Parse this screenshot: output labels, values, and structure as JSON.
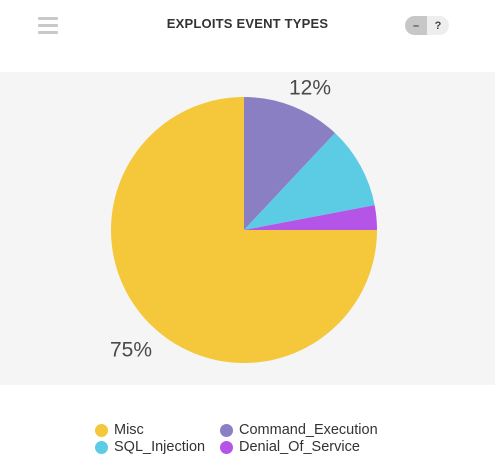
{
  "header": {
    "title": "EXPLOITS EVENT TYPES",
    "menu_icon": "hamburger-menu-icon",
    "minimize_label": "–",
    "help_label": "?"
  },
  "colors": {
    "plot_background": "#f5f5f5",
    "minimize_bg": "#c7c7c7",
    "help_bg": "#eeeeee"
  },
  "chart_data": {
    "type": "pie",
    "title": "EXPLOITS EVENT TYPES",
    "start_angle_deg": 0,
    "direction": "clockwise",
    "slices": [
      {
        "name": "Command_Execution",
        "value": 12,
        "color": "#8a7fc2",
        "label": "12%"
      },
      {
        "name": "SQL_Injection",
        "value": 10,
        "color": "#5ccce5",
        "label": ""
      },
      {
        "name": "Denial_Of_Service",
        "value": 3,
        "color": "#b455e8",
        "label": ""
      },
      {
        "name": "Misc",
        "value": 75,
        "color": "#f5c73a",
        "label": "75%"
      }
    ],
    "legend": {
      "position": "bottom",
      "entries": [
        {
          "name": "Misc",
          "color": "#f5c73a"
        },
        {
          "name": "Command_Execution",
          "color": "#8a7fc2"
        },
        {
          "name": "SQL_Injection",
          "color": "#5ccce5"
        },
        {
          "name": "Denial_Of_Service",
          "color": "#b455e8"
        }
      ]
    }
  }
}
